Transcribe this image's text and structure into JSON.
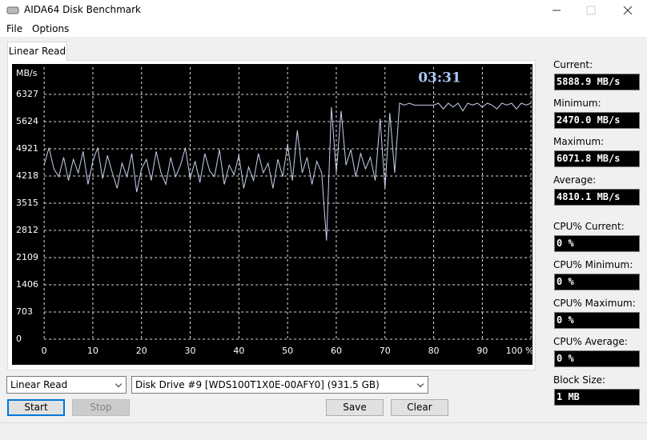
{
  "window": {
    "title": "AIDA64 Disk Benchmark"
  },
  "menu": [
    "File",
    "Options"
  ],
  "tab": "Linear Read",
  "chart_data": {
    "type": "line",
    "timer": "03:31",
    "y_label": "MB/s",
    "color": "#c6d2ee",
    "xlim": [
      -6.6,
      100.3
    ],
    "xticks": [
      0,
      10,
      20,
      30,
      40,
      50,
      60,
      70,
      80,
      90,
      {
        "value": 100,
        "label": "100 %"
      }
    ],
    "ylim": [
      0,
      7030
    ],
    "yticks": [
      0,
      703,
      1406,
      2109,
      2812,
      3515,
      4218,
      4921,
      5624,
      6327
    ],
    "grid": true,
    "x": [
      0,
      1,
      2,
      3,
      4,
      5,
      6,
      7,
      8,
      9,
      10,
      11,
      12,
      13,
      14,
      15,
      16,
      17,
      18,
      19,
      20,
      21,
      22,
      23,
      24,
      25,
      26,
      27,
      28,
      29,
      30,
      31,
      32,
      33,
      34,
      35,
      36,
      37,
      38,
      39,
      40,
      41,
      42,
      43,
      44,
      45,
      46,
      47,
      48,
      49,
      50,
      51,
      52,
      53,
      54,
      55,
      56,
      57,
      58,
      59,
      60,
      61,
      62,
      63,
      64,
      65,
      66,
      67,
      68,
      69,
      70,
      71,
      72,
      73,
      74,
      75,
      76,
      77,
      78,
      79,
      80,
      81,
      82,
      83,
      84,
      85,
      86,
      87,
      88,
      89,
      90,
      91,
      92,
      93,
      94,
      95,
      96,
      97,
      98,
      99,
      100
    ],
    "values": [
      4500,
      4950,
      4400,
      4200,
      4700,
      4100,
      4650,
      4300,
      4850,
      4000,
      4600,
      4950,
      4150,
      4750,
      4300,
      3900,
      4550,
      4200,
      4800,
      3800,
      4400,
      4650,
      4100,
      4850,
      4300,
      4000,
      4700,
      4200,
      4500,
      4950,
      4150,
      4600,
      4050,
      4800,
      4350,
      4200,
      4900,
      4000,
      4500,
      4250,
      4750,
      3900,
      4450,
      4100,
      4800,
      4300,
      4550,
      3900,
      4650,
      4200,
      5050,
      4100,
      5400,
      4300,
      4700,
      4000,
      4600,
      4300,
      2550,
      6000,
      4300,
      5900,
      4500,
      4900,
      4200,
      4800,
      4400,
      4700,
      4100,
      5700,
      3900,
      5850,
      4300,
      6100,
      6050,
      6100,
      6050,
      6050,
      6050,
      6050,
      6050,
      6100,
      5950,
      6100,
      6000,
      6100,
      5900,
      6100,
      6050,
      6100,
      6000,
      6100,
      6050,
      5950,
      6100,
      6050,
      6100,
      5950,
      6100,
      6050,
      6100
    ]
  },
  "stats": [
    {
      "label": "Current:",
      "value": "5888.9 MB/s"
    },
    {
      "label": "Minimum:",
      "value": "2470.0 MB/s"
    },
    {
      "label": "Maximum:",
      "value": "6071.8 MB/s"
    },
    {
      "label": "Average:",
      "value": "4810.1 MB/s"
    },
    {
      "label": "CPU% Current:",
      "value": "0 %"
    },
    {
      "label": "CPU% Minimum:",
      "value": "0 %"
    },
    {
      "label": "CPU% Maximum:",
      "value": "0 %"
    },
    {
      "label": "CPU% Average:",
      "value": "0 %"
    },
    {
      "label": "Block Size:",
      "value": "1 MB"
    }
  ],
  "controls": {
    "test_select": "Linear Read",
    "drive_select": "Disk Drive #9  [WDS100T1X0E-00AFY0]  (931.5 GB)",
    "start": "Start",
    "stop": "Stop",
    "save": "Save",
    "clear": "Clear"
  }
}
